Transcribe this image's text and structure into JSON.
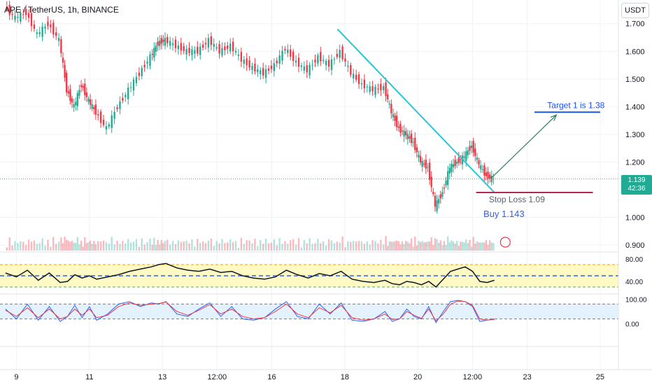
{
  "header": {
    "symbol": "APE / TetherUS, 1h, BINANCE",
    "currency": "USDT"
  },
  "colors": {
    "up": "#22ab94",
    "down": "#f23645",
    "trendline": "#26c6da",
    "target": "#1e53e5",
    "stop": "#b2284f",
    "arrow": "#2e7d5b",
    "buy_text": "#2962ff",
    "rsi_band": "#fff9c4",
    "stoch_band": "#e3f2fd"
  },
  "price_axis": {
    "ticks": [
      "1.700",
      "1.600",
      "1.500",
      "1.400",
      "1.300",
      "1.200",
      "1.000",
      "0.900"
    ],
    "tick_values": [
      1.7,
      1.6,
      1.5,
      1.4,
      1.3,
      1.2,
      1.0,
      0.9
    ]
  },
  "current_price": {
    "value": "1.139",
    "countdown": "42:36",
    "level": 1.139
  },
  "rsi_axis": {
    "ticks": [
      "80.00",
      "40.00"
    ],
    "tick_values": [
      80,
      40
    ]
  },
  "stoch_axis": {
    "ticks": [
      "100.00",
      "0.00"
    ],
    "tick_values": [
      100,
      0
    ]
  },
  "time_axis": {
    "ticks": [
      "9",
      "11",
      "13",
      "12:00",
      "16",
      "18",
      "20",
      "12:00",
      "23",
      "25"
    ],
    "tick_days": [
      9,
      11,
      13,
      14.5,
      16,
      18,
      20,
      21.5,
      23,
      25
    ]
  },
  "annotations": {
    "target": {
      "label": "Target 1 is 1.38",
      "price": 1.38
    },
    "stop": {
      "label": "Stop Loss 1.09",
      "price": 1.09
    },
    "buy": {
      "label": "Buy 1.143",
      "price": 1.143
    },
    "trendline": {
      "from": [
        17.8,
        1.68
      ],
      "to": [
        22.1,
        1.09
      ]
    },
    "arrow": {
      "from": [
        22.0,
        1.14
      ],
      "to": [
        23.8,
        1.37
      ]
    }
  },
  "chart_data": {
    "type": "line",
    "title": "APE / TetherUS, 1h, BINANCE",
    "xlabel": "",
    "ylabel": "",
    "x_unit": "day of month",
    "x": [
      8.7,
      9.0,
      9.3,
      9.6,
      9.9,
      10.2,
      10.4,
      10.6,
      10.8,
      11.0,
      11.2,
      11.5,
      11.8,
      12.1,
      12.4,
      12.7,
      12.9,
      13.1,
      13.4,
      13.7,
      14.0,
      14.3,
      14.6,
      14.9,
      15.2,
      15.5,
      15.8,
      16.1,
      16.4,
      16.7,
      17.0,
      17.3,
      17.6,
      17.9,
      18.2,
      18.5,
      18.8,
      19.1,
      19.3,
      19.5,
      19.7,
      19.9,
      20.1,
      20.3,
      20.5,
      20.7,
      20.9,
      21.1,
      21.3,
      21.5,
      21.7,
      21.9,
      22.1
    ],
    "close": [
      1.76,
      1.72,
      1.74,
      1.66,
      1.7,
      1.64,
      1.46,
      1.4,
      1.48,
      1.42,
      1.38,
      1.32,
      1.4,
      1.46,
      1.52,
      1.58,
      1.63,
      1.64,
      1.62,
      1.6,
      1.6,
      1.64,
      1.6,
      1.62,
      1.57,
      1.54,
      1.52,
      1.55,
      1.61,
      1.56,
      1.53,
      1.58,
      1.55,
      1.6,
      1.52,
      1.48,
      1.46,
      1.47,
      1.38,
      1.32,
      1.3,
      1.27,
      1.2,
      1.18,
      1.04,
      1.09,
      1.18,
      1.2,
      1.22,
      1.26,
      1.19,
      1.15,
      1.139
    ],
    "price_range": [
      0.88,
      1.76
    ],
    "x_range": [
      8.55,
      25.5
    ],
    "rsi": {
      "name": "RSI",
      "upper": 70,
      "middle": 50,
      "lower": 30,
      "values": [
        55,
        48,
        60,
        42,
        55,
        38,
        40,
        52,
        46,
        50,
        44,
        48,
        52,
        58,
        62,
        66,
        70,
        72,
        64,
        60,
        58,
        62,
        56,
        58,
        50,
        46,
        44,
        48,
        60,
        52,
        46,
        54,
        50,
        58,
        44,
        40,
        38,
        42,
        36,
        34,
        40,
        38,
        34,
        40,
        30,
        44,
        58,
        62,
        66,
        58,
        40,
        38,
        42
      ],
      "range": [
        20,
        90
      ]
    },
    "stoch": {
      "name": "Stoch",
      "upper": 80,
      "lower": 20,
      "k": [
        60,
        20,
        80,
        15,
        70,
        10,
        30,
        75,
        25,
        70,
        15,
        40,
        80,
        90,
        70,
        85,
        80,
        90,
        40,
        30,
        60,
        85,
        30,
        70,
        20,
        15,
        25,
        60,
        90,
        30,
        20,
        80,
        40,
        85,
        15,
        10,
        20,
        50,
        10,
        20,
        60,
        30,
        20,
        70,
        5,
        50,
        90,
        95,
        90,
        70,
        10,
        15,
        20
      ],
      "d": [
        55,
        30,
        65,
        25,
        60,
        20,
        30,
        60,
        35,
        60,
        25,
        35,
        70,
        85,
        75,
        80,
        82,
        88,
        50,
        35,
        55,
        78,
        40,
        60,
        30,
        20,
        25,
        50,
        80,
        40,
        25,
        65,
        45,
        75,
        25,
        15,
        20,
        40,
        18,
        20,
        50,
        35,
        22,
        60,
        12,
        40,
        80,
        92,
        90,
        75,
        20,
        15,
        18
      ],
      "range": [
        -15,
        115
      ]
    },
    "grid": true
  }
}
